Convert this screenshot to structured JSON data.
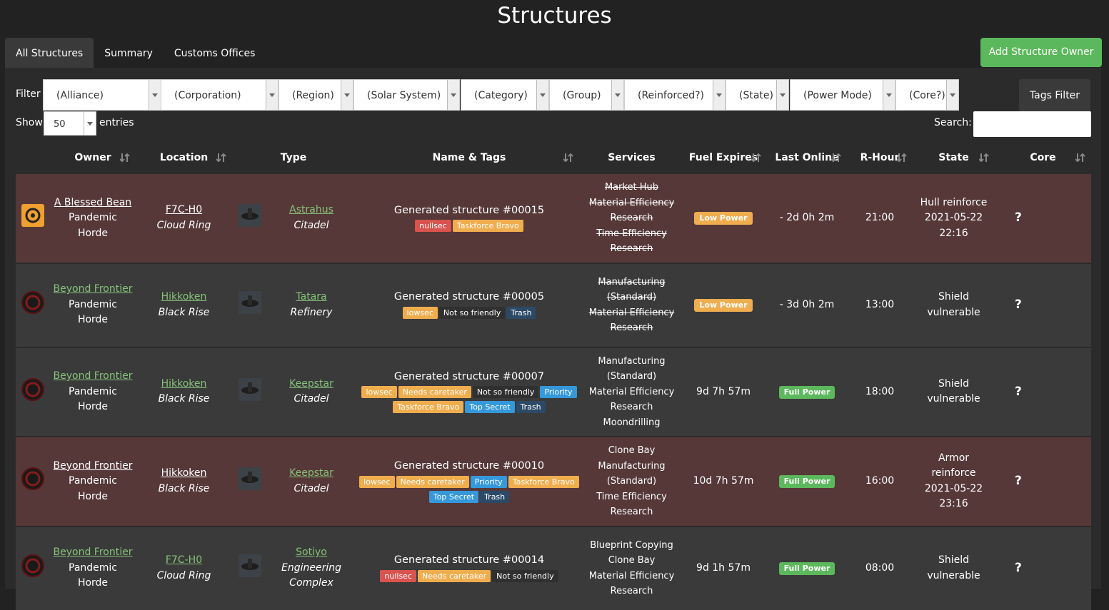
{
  "header": {
    "title": "Structures"
  },
  "tabs": [
    "All Structures",
    "Summary",
    "Customs Offices"
  ],
  "add_button": "Add Structure Owner",
  "filter_label": "Filter",
  "filters": [
    "(Alliance)",
    "(Corporation)",
    "(Region)",
    "(Solar System)",
    "(Category)",
    "(Group)",
    "(Reinforced?)",
    "(State)",
    "(Power Mode)",
    "(Core?)"
  ],
  "tags_filter": "Tags Filter",
  "show_label": "Show",
  "page_size": "50",
  "entries_label": "entries",
  "search_label": "Search:",
  "table": {
    "columns": [
      "Owner",
      "Location",
      "Type",
      "Name & Tags",
      "Services",
      "Fuel Expires",
      "Last Online",
      "R-Hour",
      "State",
      "Core"
    ],
    "rows": [
      {
        "highlight": true,
        "corporation": "A Blessed Bean",
        "alliance": "Pandemic Horde",
        "system": "F7C-H0",
        "region": "Cloud Ring",
        "type": "Astrahus",
        "group": "Citadel",
        "name": "Generated structure #00015",
        "tags": [
          {
            "text": "nullsec",
            "color": "#d9534f"
          },
          {
            "text": "Taskforce Bravo",
            "color": "#f0ad4e"
          }
        ],
        "services": [
          "Market Hub",
          "Material Efficiency Research",
          "Time Efficiency Research"
        ],
        "services_offline": true,
        "fuel": {
          "text": "Low Power",
          "badge": "#f0ad4e"
        },
        "last_online": {
          "text": "- 2d 0h 2m"
        },
        "r_hour": "21:00",
        "state": "Hull reinforce 2021-05-22 22:16",
        "core": "?"
      },
      {
        "highlight": false,
        "corporation": "Beyond Frontier",
        "alliance": "Pandemic Horde",
        "system": "Hikkoken",
        "region": "Black Rise",
        "type": "Tatara",
        "group": "Refinery",
        "name": "Generated structure #00005",
        "tags": [
          {
            "text": "lowsec",
            "color": "#f0ad4e"
          },
          {
            "text": "Not so friendly",
            "color": "#303030"
          },
          {
            "text": "Trash",
            "color": "#2c4a68"
          }
        ],
        "services": [
          "Manufacturing (Standard)",
          "Material Efficiency Research"
        ],
        "services_offline": true,
        "fuel": {
          "text": "Low Power",
          "badge": "#f0ad4e"
        },
        "last_online": {
          "text": "- 3d 0h 2m"
        },
        "r_hour": "13:00",
        "state": "Shield vulnerable",
        "core": "?"
      },
      {
        "highlight": false,
        "corporation": "Beyond Frontier",
        "alliance": "Pandemic Horde",
        "system": "Hikkoken",
        "region": "Black Rise",
        "type": "Keepstar",
        "group": "Citadel",
        "name": "Generated structure #00007",
        "tags": [
          {
            "text": "lowsec",
            "color": "#f0ad4e"
          },
          {
            "text": "Needs caretaker",
            "color": "#f0ad4e"
          },
          {
            "text": "Not so friendly",
            "color": "#303030"
          },
          {
            "text": "Priority",
            "color": "#3498db"
          },
          {
            "text": "Taskforce Bravo",
            "color": "#f0ad4e"
          },
          {
            "text": "Top Secret",
            "color": "#3498db"
          },
          {
            "text": "Trash",
            "color": "#2c4a68"
          }
        ],
        "services": [
          "Manufacturing (Standard)",
          "Material Efficiency Research",
          "Moondrilling"
        ],
        "services_offline": false,
        "fuel": {
          "text": "9d 7h 57m"
        },
        "last_online": {
          "text": "Full Power",
          "badge": "#5cb85c"
        },
        "r_hour": "18:00",
        "state": "Shield vulnerable",
        "core": "?"
      },
      {
        "highlight": true,
        "corporation": "Beyond Frontier",
        "alliance": "Pandemic Horde",
        "system": "Hikkoken",
        "region": "Black Rise",
        "type": "Keepstar",
        "group": "Citadel",
        "name": "Generated structure #00010",
        "tags": [
          {
            "text": "lowsec",
            "color": "#f0ad4e"
          },
          {
            "text": "Needs caretaker",
            "color": "#f0ad4e"
          },
          {
            "text": "Priority",
            "color": "#3498db"
          },
          {
            "text": "Taskforce Bravo",
            "color": "#f0ad4e"
          },
          {
            "text": "Top Secret",
            "color": "#3498db"
          },
          {
            "text": "Trash",
            "color": "#2c4a68"
          }
        ],
        "services": [
          "Clone Bay",
          "Manufacturing (Standard)",
          "Time Efficiency Research"
        ],
        "services_offline": false,
        "fuel": {
          "text": "10d 7h 57m"
        },
        "last_online": {
          "text": "Full Power",
          "badge": "#5cb85c"
        },
        "r_hour": "16:00",
        "state": "Armor reinforce 2021-05-22 23:16",
        "core": "?"
      },
      {
        "highlight": false,
        "corporation": "Beyond Frontier",
        "alliance": "Pandemic Horde",
        "system": "F7C-H0",
        "region": "Cloud Ring",
        "type": "Sotiyo",
        "group": "Engineering Complex",
        "name": "Generated structure #00014",
        "tags": [
          {
            "text": "nullsec",
            "color": "#d9534f"
          },
          {
            "text": "Needs caretaker",
            "color": "#f0ad4e"
          },
          {
            "text": "Not so friendly",
            "color": "#303030"
          }
        ],
        "services": [
          "Blueprint Copying",
          "Clone Bay",
          "Material Efficiency Research"
        ],
        "services_offline": false,
        "fuel": {
          "text": "9d 1h 57m"
        },
        "last_online": {
          "text": "Full Power",
          "badge": "#5cb85c"
        },
        "r_hour": "08:00",
        "state": "Shield vulnerable",
        "core": "?"
      }
    ]
  }
}
